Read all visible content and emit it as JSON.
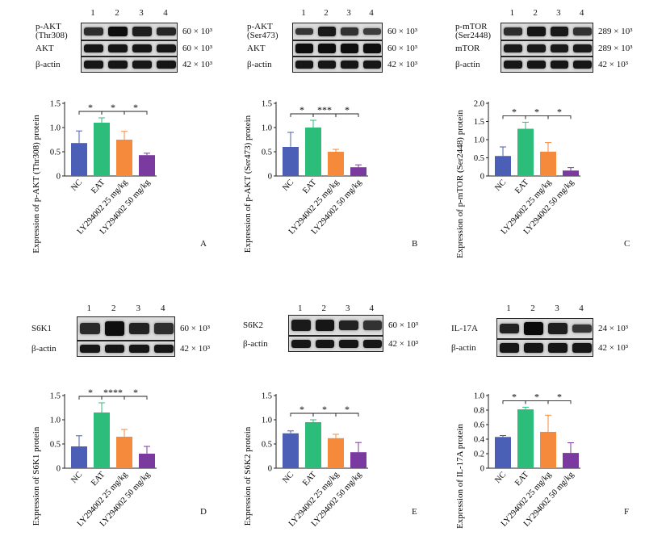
{
  "colors": {
    "NC": "#4a5fb5",
    "EAT": "#2dbd7a",
    "LY25": "#f58a3c",
    "LY50": "#7b3aa0"
  },
  "lanes": [
    "1",
    "2",
    "3",
    "4"
  ],
  "panels": [
    {
      "letter": "A",
      "blots": [
        {
          "label": "p-AKT\n(Thr308)",
          "mw": "60 × 10³",
          "intensity": [
            0.55,
            0.95,
            0.75,
            0.65
          ]
        },
        {
          "label": "AKT",
          "mw": "60 × 10³",
          "intensity": [
            0.85,
            0.85,
            0.85,
            0.85
          ]
        },
        {
          "label": "β-actin",
          "mw": "42 × 10³",
          "intensity": [
            0.85,
            0.85,
            0.85,
            0.85
          ]
        }
      ],
      "chart_data": {
        "type": "bar",
        "categories": [
          "NC",
          "EAT",
          "LY294002 25 mg/kg",
          "LY294002 50 mg/kg"
        ],
        "values": [
          0.68,
          1.1,
          0.75,
          0.43
        ],
        "errors": [
          0.25,
          0.1,
          0.17,
          0.04
        ],
        "ylabel": "Expression of p-AKT (Thr308) protein",
        "ylim": [
          0,
          1.5
        ],
        "yticks": [
          "0",
          "0.5",
          "1.0",
          "1.5"
        ],
        "significance": [
          "*",
          "*",
          "*"
        ]
      }
    },
    {
      "letter": "B",
      "blots": [
        {
          "label": "p-AKT\n(Ser473)",
          "mw": "60 × 10³",
          "intensity": [
            0.45,
            0.8,
            0.5,
            0.35
          ]
        },
        {
          "label": "AKT",
          "mw": "60 × 10³",
          "intensity": [
            0.95,
            0.95,
            0.95,
            0.95
          ]
        },
        {
          "label": "β-actin",
          "mw": "42 × 10³",
          "intensity": [
            0.85,
            0.85,
            0.85,
            0.85
          ]
        }
      ],
      "chart_data": {
        "type": "bar",
        "categories": [
          "NC",
          "EAT",
          "LY294002 25 mg/kg",
          "LY294002 50 mg/kg"
        ],
        "values": [
          0.6,
          1.0,
          0.5,
          0.18
        ],
        "errors": [
          0.3,
          0.15,
          0.05,
          0.05
        ],
        "ylabel": "Expression of p-AKT (Ser473) protein",
        "ylim": [
          0,
          1.5
        ],
        "yticks": [
          "0",
          "0.5",
          "1.0",
          "1.5"
        ],
        "significance": [
          "*",
          "***",
          "*"
        ]
      }
    },
    {
      "letter": "C",
      "blots": [
        {
          "label": "p-mTOR\n(Ser2448)",
          "mw": "289 × 10³",
          "intensity": [
            0.55,
            0.85,
            0.8,
            0.5
          ]
        },
        {
          "label": "mTOR",
          "mw": "289 × 10³",
          "intensity": [
            0.8,
            0.8,
            0.8,
            0.8
          ]
        },
        {
          "label": "β-actin",
          "mw": "42 × 10³",
          "intensity": [
            0.85,
            0.85,
            0.85,
            0.85
          ]
        }
      ],
      "chart_data": {
        "type": "bar",
        "categories": [
          "NC",
          "EAT",
          "LY294002 25 mg/kg",
          "LY294002 50 mg/kg"
        ],
        "values": [
          0.55,
          1.3,
          0.67,
          0.15
        ],
        "errors": [
          0.25,
          0.18,
          0.25,
          0.08
        ],
        "ylabel": "Expression of p-mTOR (Ser2448) protein",
        "ylim": [
          0,
          2.0
        ],
        "yticks": [
          "0",
          "0.5",
          "1.0",
          "1.5",
          "2.0"
        ],
        "significance": [
          "*",
          "*",
          "*"
        ]
      }
    },
    {
      "letter": "D",
      "blots": [
        {
          "label": "S6K1",
          "mw": "60 × 10³",
          "intensity": [
            0.6,
            0.95,
            0.7,
            0.55
          ]
        },
        {
          "label": "β-actin",
          "mw": "42 × 10³",
          "intensity": [
            0.85,
            0.85,
            0.85,
            0.85
          ]
        }
      ],
      "chart_data": {
        "type": "bar",
        "categories": [
          "NC",
          "EAT",
          "LY294002 25 mg/kg",
          "LY294002 50 mg/kg"
        ],
        "values": [
          0.45,
          1.15,
          0.65,
          0.3
        ],
        "errors": [
          0.22,
          0.2,
          0.15,
          0.15
        ],
        "ylabel": "Expression of S6K1 protein",
        "ylim": [
          0,
          1.5
        ],
        "yticks": [
          "0",
          "0.5",
          "1.0",
          "1.5"
        ],
        "significance": [
          "*",
          "****",
          "*"
        ]
      }
    },
    {
      "letter": "E",
      "blots": [
        {
          "label": "S6K2",
          "mw": "60 × 10³",
          "intensity": [
            0.8,
            0.85,
            0.7,
            0.5
          ]
        },
        {
          "label": "β-actin",
          "mw": "42 × 10³",
          "intensity": [
            0.85,
            0.85,
            0.85,
            0.85
          ]
        }
      ],
      "chart_data": {
        "type": "bar",
        "categories": [
          "NC",
          "EAT",
          "LY294002 25 mg/kg",
          "LY294002 50 mg/kg"
        ],
        "values": [
          0.72,
          0.95,
          0.62,
          0.33
        ],
        "errors": [
          0.05,
          0.05,
          0.08,
          0.2
        ],
        "ylabel": "Expression of S6K2 protein",
        "ylim": [
          0,
          1.5
        ],
        "yticks": [
          "0",
          "0.5",
          "1.0",
          "1.5"
        ],
        "significance": [
          "*",
          "*",
          "*"
        ]
      }
    },
    {
      "letter": "F",
      "blots": [
        {
          "label": "IL-17A",
          "mw": "24 × 10³",
          "intensity": [
            0.7,
            1.0,
            0.75,
            0.45
          ]
        },
        {
          "label": "β-actin",
          "mw": "42 × 10³",
          "intensity": [
            0.85,
            0.85,
            0.85,
            0.85
          ]
        }
      ],
      "chart_data": {
        "type": "bar",
        "categories": [
          "NC",
          "EAT",
          "LY294002 25 mg/kg",
          "LY294002 50 mg/kg"
        ],
        "values": [
          0.43,
          0.81,
          0.5,
          0.21
        ],
        "errors": [
          0.02,
          0.03,
          0.23,
          0.14
        ],
        "ylabel": "Expression of IL-17A protein",
        "ylim": [
          0,
          1.0
        ],
        "yticks": [
          "0",
          "0.2",
          "0.4",
          "0.6",
          "0.8",
          "1.0"
        ],
        "significance": [
          "*",
          "*",
          "*"
        ]
      }
    }
  ]
}
